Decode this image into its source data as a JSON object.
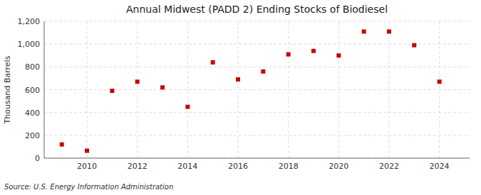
{
  "chart_data": {
    "type": "scatter",
    "title": "Annual Midwest (PADD 2) Ending Stocks of Biodiesel",
    "ylabel": "Thousand Barrels",
    "source": "Source: U.S. Energy Information Administration",
    "x": [
      2009,
      2010,
      2011,
      2012,
      2013,
      2014,
      2015,
      2016,
      2017,
      2018,
      2019,
      2020,
      2021,
      2022,
      2023,
      2024
    ],
    "values": [
      120,
      65,
      590,
      670,
      620,
      450,
      840,
      690,
      760,
      910,
      940,
      900,
      1110,
      1110,
      990,
      670
    ],
    "color": "#cc0000",
    "marker": "square",
    "xlim": [
      2008.3,
      2025.2
    ],
    "xticks": [
      2010,
      2012,
      2014,
      2016,
      2018,
      2020,
      2022,
      2024
    ],
    "ylim": [
      0,
      1200
    ],
    "yticks": [
      0,
      200,
      400,
      600,
      800,
      {
        "value": 1000,
        "label": "1,000"
      },
      {
        "value": 1200,
        "label": "1,200"
      }
    ],
    "grid": true
  }
}
